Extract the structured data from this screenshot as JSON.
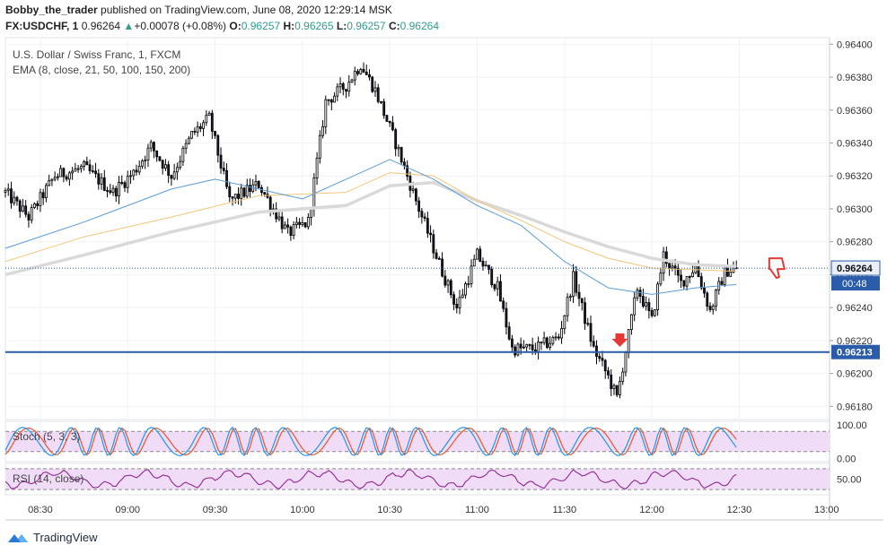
{
  "header": {
    "author": "Bobby_the_trader",
    "published_text": " published on TradingView.com, June 08, 2020 12:29:14 MSK",
    "symbol": "FX:USDCHF, 1",
    "last": "0.96264",
    "change_arrow": "▲",
    "change": "+0.00078 (+0.08%)",
    "o_label": "O:",
    "o_value": "0.96257",
    "h_label": "H:",
    "h_value": "0.96265",
    "l_label": "L:",
    "l_value": "0.96257",
    "c_label": "C:",
    "c_value": "0.96264"
  },
  "legend": {
    "instrument": "U.S. Dollar / Swiss Franc, 1, FXCM",
    "ema": "EMA (8, close, 21, 50, 100, 150, 200)",
    "stoch": "Stoch (5, 3, 3)",
    "rsi": "RSI (14, close)"
  },
  "brand": {
    "name": "TradingView"
  },
  "colors": {
    "up_candle": "#ffffff",
    "down_candle": "#1a1a2e",
    "wick": "#000000",
    "support_line": "#2a5caa",
    "price_line": "#2a5caa",
    "ema_blue": "#5b9bd5",
    "ema_orange": "#f2c57c",
    "ema_grey": "#d9d9d9",
    "stoch_k": "#2196f3",
    "stoch_d": "#e8572c",
    "rsi": "#8e2a8e",
    "band_fill": "#f0dcf7",
    "marker_red": "#e53935"
  },
  "chart_data": [
    {
      "type": "candlestick",
      "title": "U.S. Dollar / Swiss Franc, 1, FXCM",
      "x_ticks": [
        "08:30",
        "09:00",
        "09:30",
        "10:00",
        "10:30",
        "11:00",
        "11:30",
        "12:00",
        "12:30",
        "13:00"
      ],
      "x_tick_times": [
        "08:30",
        "09:00",
        "09:30",
        "10:00",
        "10:30",
        "11:00",
        "11:30",
        "12:00",
        "12:30",
        "13:00"
      ],
      "y_ticks": [
        "0.96400",
        "0.96380",
        "0.96360",
        "0.96340",
        "0.96320",
        "0.96300",
        "0.96280",
        "0.96260",
        "0.96240",
        "0.96220",
        "0.96200",
        "0.96180"
      ],
      "ylim": [
        0.96172,
        0.96404
      ],
      "x_range": [
        "08:18",
        "13:01"
      ],
      "current_price": {
        "value": 0.96264,
        "label": "0.96264",
        "countdown": "00:48"
      },
      "support_line": {
        "value": 0.96213,
        "label": "0.96213"
      },
      "anchors": [
        [
          "08:18",
          0.9631
        ],
        [
          "08:26",
          0.96295
        ],
        [
          "08:35",
          0.9632
        ],
        [
          "08:45",
          0.96325
        ],
        [
          "08:55",
          0.9631
        ],
        [
          "09:02",
          0.96322
        ],
        [
          "09:08",
          0.96338
        ],
        [
          "09:15",
          0.9632
        ],
        [
          "09:22",
          0.96345
        ],
        [
          "09:28",
          0.96355
        ],
        [
          "09:35",
          0.96305
        ],
        [
          "09:45",
          0.96315
        ],
        [
          "09:55",
          0.96285
        ],
        [
          "10:02",
          0.96292
        ],
        [
          "10:08",
          0.96365
        ],
        [
          "10:15",
          0.96375
        ],
        [
          "10:20",
          0.96388
        ],
        [
          "10:25",
          0.96372
        ],
        [
          "10:32",
          0.9634
        ],
        [
          "10:40",
          0.963
        ],
        [
          "10:48",
          0.96262
        ],
        [
          "10:53",
          0.9624
        ],
        [
          "11:00",
          0.96272
        ],
        [
          "11:07",
          0.96252
        ],
        [
          "11:12",
          0.96215
        ],
        [
          "11:20",
          0.96215
        ],
        [
          "11:28",
          0.96222
        ],
        [
          "11:33",
          0.96258
        ],
        [
          "11:40",
          0.96215
        ],
        [
          "11:45",
          0.96198
        ],
        [
          "11:48",
          0.96185
        ],
        [
          "11:55",
          0.96252
        ],
        [
          "12:00",
          0.96232
        ],
        [
          "12:04",
          0.96272
        ],
        [
          "12:10",
          0.96255
        ],
        [
          "12:15",
          0.96265
        ],
        [
          "12:20",
          0.96238
        ],
        [
          "12:25",
          0.96262
        ],
        [
          "12:29",
          0.96264
        ]
      ],
      "ema_curves": [
        {
          "name": "EMA blue",
          "points": [
            [
              "08:18",
              0.96276
            ],
            [
              "08:45",
              0.96292
            ],
            [
              "09:15",
              0.96312
            ],
            [
              "09:30",
              0.96318
            ],
            [
              "10:00",
              0.96306
            ],
            [
              "10:15",
              0.96318
            ],
            [
              "10:30",
              0.9633
            ],
            [
              "10:45",
              0.96318
            ],
            [
              "11:00",
              0.96302
            ],
            [
              "11:15",
              0.9629
            ],
            [
              "11:30",
              0.96268
            ],
            [
              "11:45",
              0.96252
            ],
            [
              "12:00",
              0.96248
            ],
            [
              "12:15",
              0.96252
            ],
            [
              "12:29",
              0.96254
            ]
          ]
        },
        {
          "name": "EMA orange",
          "points": [
            [
              "08:18",
              0.96268
            ],
            [
              "08:45",
              0.96283
            ],
            [
              "09:15",
              0.96295
            ],
            [
              "09:45",
              0.96308
            ],
            [
              "10:15",
              0.9631
            ],
            [
              "10:30",
              0.96322
            ],
            [
              "10:45",
              0.9632
            ],
            [
              "11:00",
              0.96305
            ],
            [
              "11:15",
              0.96293
            ],
            [
              "11:30",
              0.9628
            ],
            [
              "11:45",
              0.9627
            ],
            [
              "12:00",
              0.96264
            ],
            [
              "12:15",
              0.96263
            ],
            [
              "12:29",
              0.96262
            ]
          ]
        },
        {
          "name": "EMA grey",
          "points": [
            [
              "08:18",
              0.9626
            ],
            [
              "08:45",
              0.96272
            ],
            [
              "09:15",
              0.96286
            ],
            [
              "09:45",
              0.96298
            ],
            [
              "10:15",
              0.96302
            ],
            [
              "10:30",
              0.96314
            ],
            [
              "10:45",
              0.96316
            ],
            [
              "11:00",
              0.96305
            ],
            [
              "11:15",
              0.96296
            ],
            [
              "11:30",
              0.96286
            ],
            [
              "11:45",
              0.96277
            ],
            [
              "12:00",
              0.9627
            ],
            [
              "12:15",
              0.96266
            ],
            [
              "12:29",
              0.96265
            ]
          ]
        }
      ]
    },
    {
      "type": "line",
      "title": "Stoch (5, 3, 3)",
      "y_ticks": [
        "100.00",
        "0.00"
      ],
      "ylim": [
        -10,
        110
      ],
      "band": [
        20,
        80
      ]
    },
    {
      "type": "line",
      "title": "RSI (14, close)",
      "y_ticks": [
        "50.00"
      ],
      "ylim": [
        20,
        80
      ],
      "band": [
        30,
        70
      ]
    }
  ]
}
